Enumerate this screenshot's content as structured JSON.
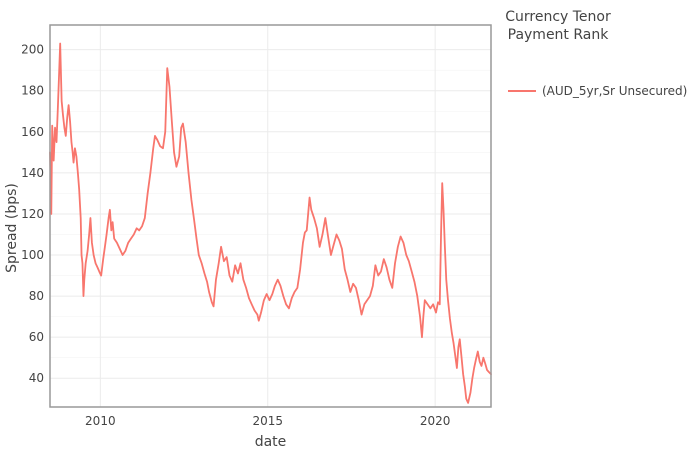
{
  "chart_data": {
    "type": "line",
    "xlabel": "date",
    "ylabel": "Spread (bps)",
    "xlim": [
      "2008-07-01",
      "2021-09-01"
    ],
    "ylim": [
      26,
      212
    ],
    "x_ticks": [
      {
        "value": "2010-01-01",
        "label": "2010"
      },
      {
        "value": "2015-01-01",
        "label": "2015"
      },
      {
        "value": "2020-01-01",
        "label": "2020"
      }
    ],
    "y_ticks": [
      40,
      60,
      80,
      100,
      120,
      140,
      160,
      180,
      200
    ],
    "grid": true,
    "legend": {
      "title_lines": [
        "Currency Tenor",
        "Payment Rank"
      ],
      "position": "right"
    },
    "colors": {
      "line": "#f8766d",
      "grid": "#ebebeb",
      "frame": "#999999"
    },
    "series": [
      {
        "name": "(AUD_5yr,Sr Unsecured)",
        "points": [
          [
            "2008-07-01",
            150
          ],
          [
            "2008-07-15",
            120
          ],
          [
            "2008-07-25",
            163
          ],
          [
            "2008-08-10",
            146
          ],
          [
            "2008-08-25",
            162
          ],
          [
            "2008-09-10",
            155
          ],
          [
            "2008-09-25",
            172
          ],
          [
            "2008-10-08",
            188
          ],
          [
            "2008-10-20",
            203
          ],
          [
            "2008-11-05",
            175
          ],
          [
            "2008-11-20",
            168
          ],
          [
            "2008-12-05",
            162
          ],
          [
            "2008-12-20",
            158
          ],
          [
            "2009-01-05",
            167
          ],
          [
            "2009-01-20",
            173
          ],
          [
            "2009-02-05",
            165
          ],
          [
            "2009-02-20",
            155
          ],
          [
            "2009-03-05",
            150
          ],
          [
            "2009-03-15",
            145
          ],
          [
            "2009-03-30",
            152
          ],
          [
            "2009-04-15",
            148
          ],
          [
            "2009-05-01",
            140
          ],
          [
            "2009-05-15",
            132
          ],
          [
            "2009-06-01",
            118
          ],
          [
            "2009-06-10",
            100
          ],
          [
            "2009-06-20",
            96
          ],
          [
            "2009-07-01",
            80
          ],
          [
            "2009-07-10",
            88
          ],
          [
            "2009-07-25",
            96
          ],
          [
            "2009-08-15",
            102
          ],
          [
            "2009-09-01",
            110
          ],
          [
            "2009-09-15",
            118
          ],
          [
            "2009-10-01",
            106
          ],
          [
            "2009-10-20",
            100
          ],
          [
            "2009-11-10",
            96
          ],
          [
            "2009-12-01",
            94
          ],
          [
            "2009-12-20",
            92
          ],
          [
            "2010-01-10",
            90
          ],
          [
            "2010-02-01",
            98
          ],
          [
            "2010-02-20",
            104
          ],
          [
            "2010-03-10",
            110
          ],
          [
            "2010-04-01",
            118
          ],
          [
            "2010-04-15",
            122
          ],
          [
            "2010-05-01",
            112
          ],
          [
            "2010-05-15",
            116
          ],
          [
            "2010-06-01",
            108
          ],
          [
            "2010-07-01",
            106
          ],
          [
            "2010-08-01",
            103
          ],
          [
            "2010-09-01",
            100
          ],
          [
            "2010-10-01",
            102
          ],
          [
            "2010-11-01",
            106
          ],
          [
            "2010-12-01",
            108
          ],
          [
            "2011-01-01",
            110
          ],
          [
            "2011-02-01",
            113
          ],
          [
            "2011-03-01",
            112
          ],
          [
            "2011-04-01",
            114
          ],
          [
            "2011-05-01",
            118
          ],
          [
            "2011-06-01",
            130
          ],
          [
            "2011-07-01",
            140
          ],
          [
            "2011-08-01",
            152
          ],
          [
            "2011-08-20",
            158
          ],
          [
            "2011-09-15",
            156
          ],
          [
            "2011-10-15",
            153
          ],
          [
            "2011-11-15",
            152
          ],
          [
            "2011-12-10",
            160
          ],
          [
            "2012-01-01",
            191
          ],
          [
            "2012-01-25",
            182
          ],
          [
            "2012-02-20",
            165
          ],
          [
            "2012-03-15",
            150
          ],
          [
            "2012-04-10",
            143
          ],
          [
            "2012-05-10",
            148
          ],
          [
            "2012-06-01",
            162
          ],
          [
            "2012-06-20",
            164
          ],
          [
            "2012-07-20",
            155
          ],
          [
            "2012-08-20",
            140
          ],
          [
            "2012-09-20",
            127
          ],
          [
            "2012-10-20",
            117
          ],
          [
            "2012-11-15",
            108
          ],
          [
            "2012-12-10",
            100
          ],
          [
            "2013-01-10",
            96
          ],
          [
            "2013-02-10",
            91
          ],
          [
            "2013-03-10",
            87
          ],
          [
            "2013-04-01",
            82
          ],
          [
            "2013-05-01",
            77
          ],
          [
            "2013-05-20",
            75
          ],
          [
            "2013-06-15",
            88
          ],
          [
            "2013-07-15",
            96
          ],
          [
            "2013-08-10",
            104
          ],
          [
            "2013-09-10",
            97
          ],
          [
            "2013-10-10",
            99
          ],
          [
            "2013-11-10",
            90
          ],
          [
            "2013-12-10",
            87
          ],
          [
            "2014-01-10",
            95
          ],
          [
            "2014-02-10",
            91
          ],
          [
            "2014-03-10",
            96
          ],
          [
            "2014-04-10",
            88
          ],
          [
            "2014-05-10",
            84
          ],
          [
            "2014-06-10",
            79
          ],
          [
            "2014-07-10",
            76
          ],
          [
            "2014-08-10",
            73
          ],
          [
            "2014-09-10",
            71
          ],
          [
            "2014-09-25",
            68
          ],
          [
            "2014-10-20",
            72
          ],
          [
            "2014-11-20",
            78
          ],
          [
            "2014-12-20",
            81
          ],
          [
            "2015-01-20",
            78
          ],
          [
            "2015-02-20",
            81
          ],
          [
            "2015-03-20",
            85
          ],
          [
            "2015-04-20",
            88
          ],
          [
            "2015-05-20",
            85
          ],
          [
            "2015-06-20",
            80
          ],
          [
            "2015-07-20",
            76
          ],
          [
            "2015-08-20",
            74
          ],
          [
            "2015-09-20",
            79
          ],
          [
            "2015-10-20",
            82
          ],
          [
            "2015-11-20",
            84
          ],
          [
            "2015-12-20",
            93
          ],
          [
            "2016-01-20",
            106
          ],
          [
            "2016-02-10",
            111
          ],
          [
            "2016-03-01",
            112
          ],
          [
            "2016-04-01",
            128
          ],
          [
            "2016-04-20",
            122
          ],
          [
            "2016-05-20",
            118
          ],
          [
            "2016-06-20",
            113
          ],
          [
            "2016-07-20",
            104
          ],
          [
            "2016-08-20",
            110
          ],
          [
            "2016-09-20",
            118
          ],
          [
            "2016-10-20",
            109
          ],
          [
            "2016-11-20",
            100
          ],
          [
            "2016-12-20",
            105
          ],
          [
            "2017-01-20",
            110
          ],
          [
            "2017-02-20",
            107
          ],
          [
            "2017-03-20",
            103
          ],
          [
            "2017-04-20",
            93
          ],
          [
            "2017-05-20",
            88
          ],
          [
            "2017-06-20",
            82
          ],
          [
            "2017-07-20",
            86
          ],
          [
            "2017-08-20",
            84
          ],
          [
            "2017-09-20",
            78
          ],
          [
            "2017-10-20",
            71
          ],
          [
            "2017-11-20",
            76
          ],
          [
            "2017-12-20",
            78
          ],
          [
            "2018-01-20",
            80
          ],
          [
            "2018-02-20",
            85
          ],
          [
            "2018-03-20",
            95
          ],
          [
            "2018-04-20",
            90
          ],
          [
            "2018-05-20",
            92
          ],
          [
            "2018-06-20",
            98
          ],
          [
            "2018-07-20",
            94
          ],
          [
            "2018-08-20",
            88
          ],
          [
            "2018-09-20",
            84
          ],
          [
            "2018-10-20",
            96
          ],
          [
            "2018-11-20",
            104
          ],
          [
            "2018-12-20",
            109
          ],
          [
            "2019-01-20",
            106
          ],
          [
            "2019-02-20",
            100
          ],
          [
            "2019-03-20",
            97
          ],
          [
            "2019-04-20",
            92
          ],
          [
            "2019-05-20",
            87
          ],
          [
            "2019-06-20",
            80
          ],
          [
            "2019-07-20",
            70
          ],
          [
            "2019-08-10",
            60
          ],
          [
            "2019-08-25",
            70
          ],
          [
            "2019-09-10",
            78
          ],
          [
            "2019-10-10",
            76
          ],
          [
            "2019-11-10",
            74
          ],
          [
            "2019-12-10",
            76
          ],
          [
            "2020-01-10",
            72
          ],
          [
            "2020-02-01",
            77
          ],
          [
            "2020-02-20",
            76
          ],
          [
            "2020-03-05",
            110
          ],
          [
            "2020-03-18",
            135
          ],
          [
            "2020-04-01",
            122
          ],
          [
            "2020-04-15",
            105
          ],
          [
            "2020-05-01",
            88
          ],
          [
            "2020-05-20",
            78
          ],
          [
            "2020-06-10",
            69
          ],
          [
            "2020-07-01",
            62
          ],
          [
            "2020-07-20",
            57
          ],
          [
            "2020-08-10",
            50
          ],
          [
            "2020-08-25",
            45
          ],
          [
            "2020-09-10",
            55
          ],
          [
            "2020-09-25",
            59
          ],
          [
            "2020-10-15",
            50
          ],
          [
            "2020-11-01",
            42
          ],
          [
            "2020-11-20",
            36
          ],
          [
            "2020-12-05",
            30
          ],
          [
            "2020-12-25",
            28
          ],
          [
            "2021-01-20",
            33
          ],
          [
            "2021-02-10",
            40
          ],
          [
            "2021-03-01",
            45
          ],
          [
            "2021-03-20",
            49
          ],
          [
            "2021-04-10",
            53
          ],
          [
            "2021-05-01",
            48
          ],
          [
            "2021-05-20",
            46
          ],
          [
            "2021-06-10",
            50
          ],
          [
            "2021-07-01",
            47
          ],
          [
            "2021-07-20",
            44
          ],
          [
            "2021-08-10",
            43
          ],
          [
            "2021-09-01",
            42
          ]
        ]
      }
    ]
  }
}
